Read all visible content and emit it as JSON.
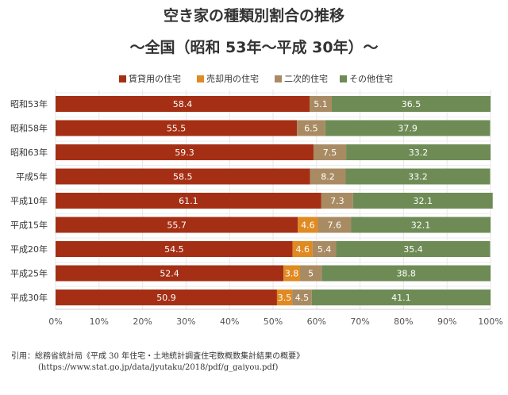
{
  "chart_data": {
    "type": "bar",
    "orientation": "horizontal",
    "stacked": true,
    "title": "空き家の種類別割合の推移",
    "subtitle": "～全国（昭和 53年～平成 30年）～",
    "categories": [
      "昭和53年",
      "昭和58年",
      "昭和63年",
      "平成5年",
      "平成10年",
      "平成15年",
      "平成20年",
      "平成25年",
      "平成30年"
    ],
    "series": [
      {
        "name": "賃貸用の住宅",
        "color": "#a52f14",
        "values": [
          58.4,
          55.5,
          59.3,
          58.5,
          61.1,
          55.7,
          54.5,
          52.4,
          50.9
        ]
      },
      {
        "name": "売却用の住宅",
        "color": "#e08a22",
        "values": [
          null,
          null,
          null,
          null,
          null,
          4.6,
          4.6,
          3.8,
          3.5
        ]
      },
      {
        "name": "二次的住宅",
        "color": "#a98b63",
        "values": [
          5.1,
          6.5,
          7.5,
          8.2,
          7.3,
          7.6,
          5.4,
          5,
          4.5
        ]
      },
      {
        "name": "その他住宅",
        "color": "#6e8b56",
        "values": [
          36.5,
          37.9,
          33.2,
          33.2,
          32.1,
          32.1,
          35.4,
          38.8,
          41.1
        ]
      }
    ],
    "xlim": [
      0,
      100
    ],
    "xticks": [
      "0%",
      "10%",
      "20%",
      "30%",
      "40%",
      "50%",
      "60%",
      "70%",
      "80%",
      "90%",
      "100%"
    ],
    "legend": "top",
    "grid": true
  },
  "source": {
    "line1": "引用：総務省統計局《平成 30 年住宅・土地統計調査住宅数概数集計結果の概要》",
    "line2": "(https://www.stat.go.jp/data/jyutaku/2018/pdf/g_gaiyou.pdf)"
  }
}
